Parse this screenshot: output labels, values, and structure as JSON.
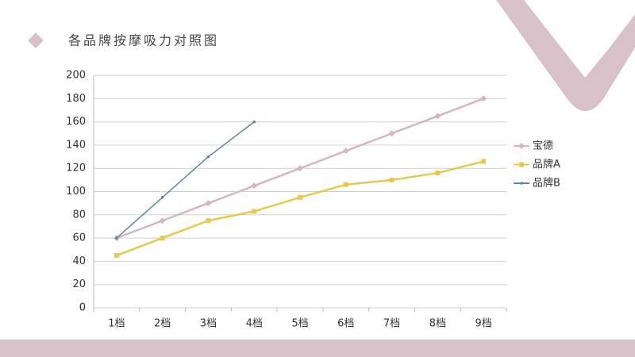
{
  "chart_data": {
    "type": "line",
    "title": "各品牌按摩吸力对照图",
    "categories": [
      "1档",
      "2档",
      "3档",
      "4档",
      "5档",
      "6档",
      "7档",
      "8档",
      "9档"
    ],
    "series": [
      {
        "name": "宝德",
        "color": "#d6b6c1",
        "marker": "diamond",
        "values": [
          60,
          75,
          90,
          105,
          120,
          135,
          150,
          165,
          180
        ]
      },
      {
        "name": "品牌A",
        "color": "#e6c94e",
        "marker": "square",
        "values": [
          45,
          60,
          75,
          83,
          95,
          106,
          110,
          116,
          126
        ]
      },
      {
        "name": "品牌B",
        "color": "#5b85ad",
        "marker": "dash",
        "values": [
          60,
          95,
          130,
          160,
          null,
          null,
          null,
          null,
          null
        ]
      }
    ],
    "ylim": [
      0,
      200
    ],
    "yticks": [
      0,
      20,
      40,
      60,
      80,
      100,
      120,
      140,
      160,
      180,
      200
    ],
    "grid": true,
    "legend": "right"
  }
}
